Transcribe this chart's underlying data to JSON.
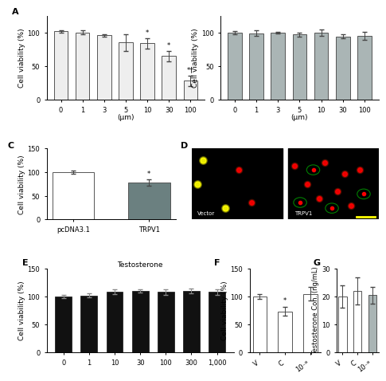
{
  "panel_A": {
    "categories": [
      "0",
      "1",
      "3",
      "5",
      "10",
      "30",
      "100"
    ],
    "values": [
      102,
      100,
      96,
      85,
      84,
      65,
      28
    ],
    "errors": [
      2,
      3,
      2,
      12,
      8,
      8,
      8
    ],
    "bar_color": "#eeeeee",
    "edge_color": "#555555",
    "xlabel": "(μm)",
    "ylabel": "Cell viability (%)",
    "ylim": [
      0,
      125
    ],
    "yticks": [
      0,
      50,
      100
    ],
    "sig_labels": [
      "",
      "",
      "",
      "",
      "*",
      "*",
      "*†"
    ]
  },
  "panel_B": {
    "categories": [
      "0",
      "1",
      "3",
      "5",
      "10",
      "30",
      "100"
    ],
    "values": [
      100,
      99,
      100,
      97,
      100,
      94,
      95
    ],
    "errors": [
      2,
      4,
      1,
      3,
      5,
      3,
      6
    ],
    "bar_color": "#aab5b5",
    "edge_color": "#555555",
    "xlabel": "(μm)",
    "ylabel": "Cell viability (%)",
    "ylim": [
      0,
      125
    ],
    "yticks": [
      0,
      50,
      100
    ]
  },
  "panel_C": {
    "categories": [
      "pcDNA3.1",
      "TRPV1"
    ],
    "values": [
      100,
      78
    ],
    "errors": [
      4,
      7
    ],
    "bar_colors": [
      "#ffffff",
      "#6b8080"
    ],
    "edge_color": "#555555",
    "ylabel": "Cell viability (%)",
    "ylim": [
      0,
      150
    ],
    "yticks": [
      0,
      50,
      100,
      150
    ],
    "sig_labels": [
      "",
      "*"
    ]
  },
  "panel_E": {
    "title": "Testosterone",
    "categories": [
      "0",
      "1",
      "10",
      "30",
      "100",
      "300",
      "1,000"
    ],
    "values": [
      100,
      102,
      109,
      110,
      108,
      110,
      108
    ],
    "errors": [
      3,
      4,
      4,
      3,
      5,
      4,
      5
    ],
    "bar_color": "#111111",
    "edge_color": "#111111",
    "ylabel": "Cell viability (%)",
    "ylim": [
      0,
      150
    ],
    "yticks": [
      0,
      50,
      100,
      150
    ]
  },
  "panel_F": {
    "categories": [
      "V",
      "C",
      "10⁻⁸"
    ],
    "values": [
      100,
      73,
      105
    ],
    "errors": [
      5,
      8,
      12
    ],
    "bar_colors": [
      "#ffffff",
      "#ffffff",
      "#ffffff"
    ],
    "edge_color": "#555555",
    "ylabel": "Cell viability (%)",
    "ylim": [
      0,
      150
    ],
    "yticks": [
      0,
      50,
      100,
      150
    ],
    "sig_labels": [
      "",
      "*",
      ""
    ]
  },
  "panel_G": {
    "categories": [
      "V",
      "C",
      "10⁻⁸"
    ],
    "values": [
      20,
      22,
      20.5
    ],
    "errors": [
      4,
      5,
      3
    ],
    "bar_colors": [
      "#ffffff",
      "#ffffff",
      "#aab5b5"
    ],
    "edge_color": "#555555",
    "ylabel": "Testosterone Con. (ng/mL)",
    "ylim": [
      0,
      30
    ],
    "yticks": [
      0,
      10,
      20,
      30
    ]
  },
  "label_fontsize": 6.5,
  "tick_fontsize": 6,
  "panel_label_fontsize": 8,
  "sig_fontsize": 6
}
